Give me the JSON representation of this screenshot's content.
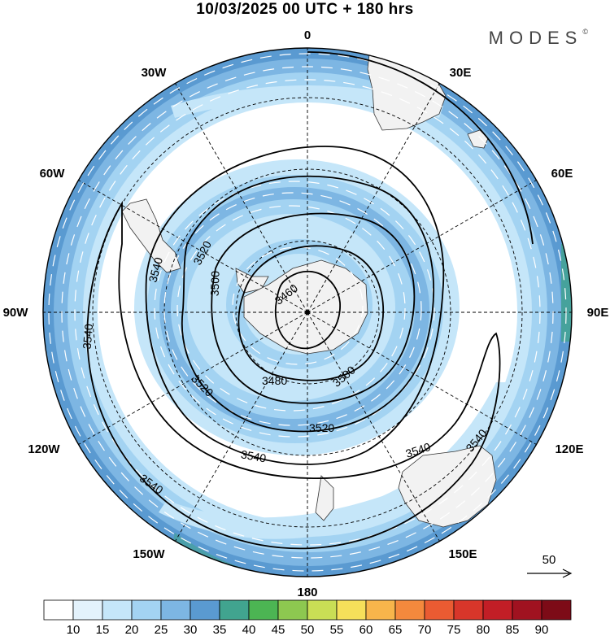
{
  "title": "10/03/2025  00 UTC  + 180 hrs",
  "brand": "MODES",
  "brand_mark": "©",
  "longitude_labels": {
    "lon_0": "0",
    "lon_30e": "30E",
    "lon_60e": "60E",
    "lon_90e": "90E",
    "lon_120e": "120E",
    "lon_150e": "150E",
    "lon_180": "180",
    "lon_150w": "150W",
    "lon_120w": "120W",
    "lon_90w": "90W",
    "lon_60w": "60W",
    "lon_30w": "30W"
  },
  "contour_labels": {
    "c1": "3460",
    "c2": "3480",
    "c3": "3500",
    "c4": "3500",
    "c5": "3520",
    "c6": "3520",
    "c7": "3520",
    "c8": "3540",
    "c9": "3540",
    "c10": "3540",
    "c11": "3540",
    "c12": "3540",
    "c13": "3540"
  },
  "reference_vector": {
    "label": "50"
  },
  "colorbar": {
    "ticks": [
      "10",
      "15",
      "20",
      "25",
      "30",
      "35",
      "40",
      "45",
      "50",
      "55",
      "60",
      "65",
      "70",
      "75",
      "80",
      "85",
      "90"
    ],
    "colors": [
      "#ffffff",
      "#e3f2fc",
      "#c5e6f9",
      "#a3d3f2",
      "#7db6e3",
      "#5a9ad1",
      "#41a48f",
      "#4cb553",
      "#8dc850",
      "#c9de55",
      "#f6e05a",
      "#f7b54b",
      "#f4893d",
      "#ea5b32",
      "#d8362a",
      "#c21e26",
      "#a01220",
      "#7d0b17"
    ]
  },
  "map_colors": {
    "land": "#f2f2f2",
    "shade_light": "#c5e6f9",
    "shade_mid": "#a3d3f2",
    "shade_dark": "#7db6e3",
    "shade_darker": "#5a9ad1",
    "shade_green": "#41a48f"
  }
}
